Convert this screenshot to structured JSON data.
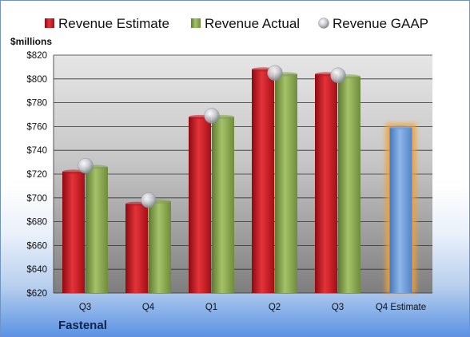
{
  "chart_data": {
    "type": "bar",
    "ylabel": "$millions",
    "ylim": [
      620,
      820
    ],
    "ytick_step": 20,
    "ytick_prefix": "$",
    "grid": true,
    "legend_position": "top",
    "categories": [
      "Q3",
      "Q4",
      "Q1",
      "Q2",
      "Q3",
      "Q4 Estimate"
    ],
    "series": [
      {
        "name": "Revenue Estimate",
        "kind": "bar",
        "color": "#c0141c",
        "values": [
          722,
          695,
          768,
          808,
          804,
          null
        ]
      },
      {
        "name": "Revenue Actual",
        "kind": "bar",
        "color": "#7f9e48",
        "values": [
          726,
          697,
          768,
          804,
          802,
          null
        ]
      },
      {
        "name": "Revenue GAAP",
        "kind": "marker",
        "color": "#b8bec6",
        "values": [
          727,
          698,
          769,
          805,
          803,
          null
        ]
      },
      {
        "name": "",
        "kind": "bar",
        "color": "#6a9bd8",
        "highlight": true,
        "values": [
          null,
          null,
          null,
          null,
          null,
          759
        ]
      }
    ]
  },
  "footer": {
    "company": "Fastenal"
  }
}
